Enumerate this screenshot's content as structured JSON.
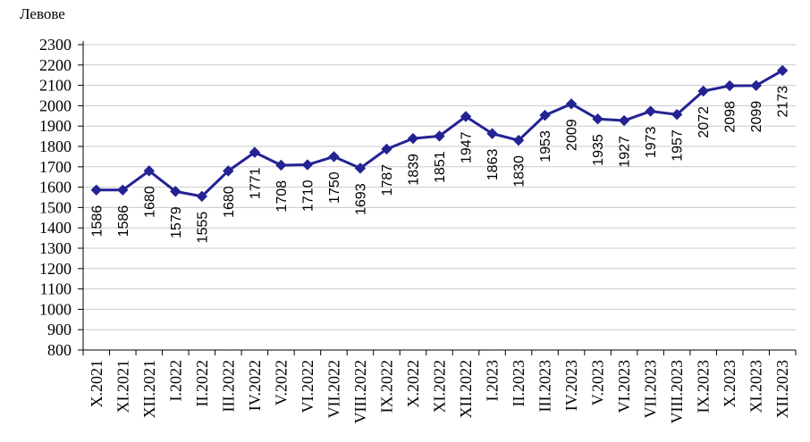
{
  "page": {
    "background": "#ffffff"
  },
  "chart_data": {
    "type": "line",
    "title": "Левове",
    "xlabel": "",
    "ylabel": "Левове",
    "categories": [
      "X.2021",
      "XI.2021",
      "XII.2021",
      "I.2022",
      "II.2022",
      "III.2022",
      "IV.2022",
      "V.2022",
      "VI.2022",
      "VII.2022",
      "VIII.2022",
      "IX.2022",
      "X.2022",
      "XI.2022",
      "XII.2022",
      "I.2023",
      "II.2023",
      "III.2023",
      "IV.2023",
      "V.2023",
      "VI.2023",
      "VII.2023",
      "VIII.2023",
      "IX.2023",
      "X.2023",
      "XI.2023",
      "XII.2023"
    ],
    "values": [
      1586,
      1586,
      1680,
      1579,
      1555,
      1680,
      1771,
      1708,
      1710,
      1750,
      1693,
      1787,
      1839,
      1851,
      1947,
      1863,
      1830,
      1953,
      2009,
      1935,
      1927,
      1973,
      1957,
      2072,
      2098,
      2099,
      2173
    ],
    "ylim": [
      800,
      2300
    ],
    "ytick_step": 100,
    "grid": true,
    "legend": "none",
    "marker": "diamond",
    "data_labels": "rotated-90-below-points",
    "colors": {
      "series": "#232394",
      "gridline": "#c9c9c9",
      "axis": "#000000",
      "text": "#000000",
      "background": "#ffffff"
    }
  }
}
